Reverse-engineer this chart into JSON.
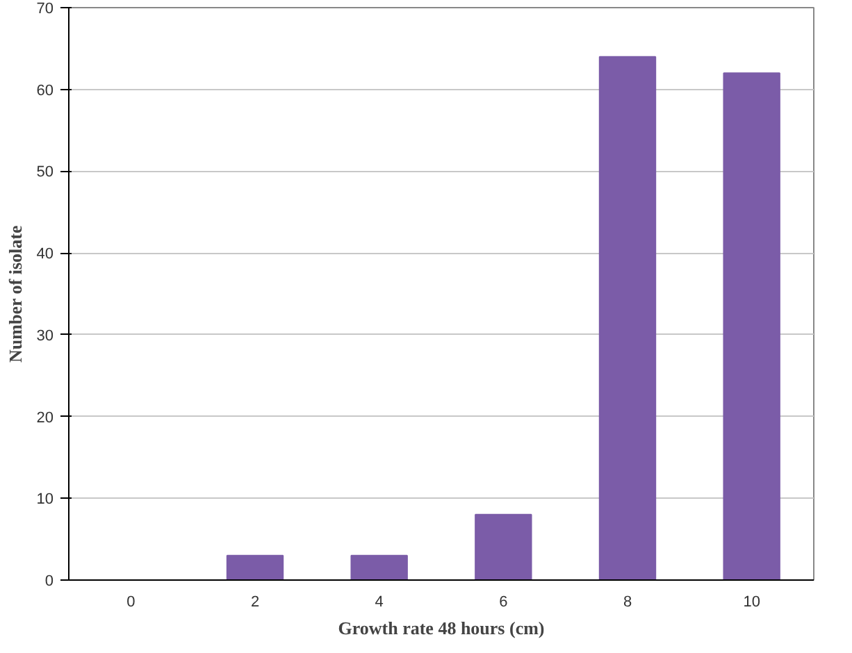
{
  "chart_data": {
    "type": "bar",
    "xlabel": "Growth rate 48 hours (cm)",
    "ylabel": "Number of isolate",
    "categories": [
      "0",
      "2",
      "4",
      "6",
      "8",
      "10"
    ],
    "values": [
      0,
      3,
      3,
      8,
      64,
      62
    ],
    "color": "#7b5ca8",
    "ylim": [
      0,
      70
    ],
    "yticks": [
      0,
      10,
      20,
      30,
      40,
      50,
      60,
      70
    ],
    "grid": "y"
  }
}
